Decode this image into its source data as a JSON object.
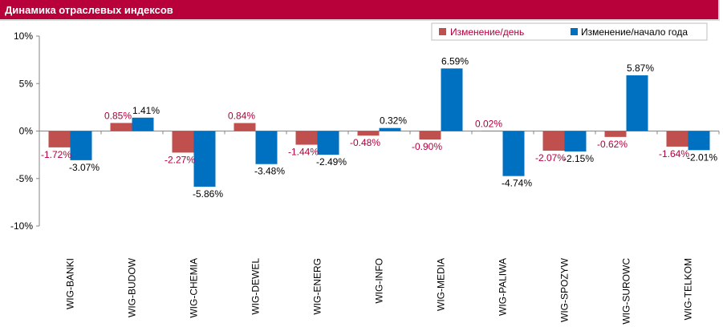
{
  "header": {
    "title": "Динамика отраслевых индексов"
  },
  "chart_data": {
    "type": "bar",
    "categories": [
      "WIG-BANKI",
      "WIG-BUDOW",
      "WIG-CHEMIA",
      "WIG-DEWEL",
      "WIG-ENERG",
      "WIG-INFO",
      "WIG-MEDIA",
      "WIG-PALIWA",
      "WIG-SPOZYW",
      "WIG-SUROWC",
      "WIG-TELKOM"
    ],
    "series": [
      {
        "name": "Изменение/день",
        "color": "#c0504d",
        "label_color": "#b3003a",
        "values": [
          -1.72,
          0.85,
          -2.27,
          0.84,
          -1.44,
          -0.48,
          -0.9,
          0.02,
          -2.07,
          -0.62,
          -1.64
        ],
        "labels": [
          "-1.72%",
          "0.85%",
          "-2.27%",
          "0.84%",
          "-1.44%",
          "-0.48%",
          "-0.90%",
          "0.02%",
          "-2.07%",
          "-0.62%",
          "-1.64%"
        ]
      },
      {
        "name": "Изменение/начало года",
        "color": "#0070c0",
        "label_color": "#000000",
        "values": [
          -3.07,
          1.41,
          -5.86,
          -3.48,
          -2.49,
          0.32,
          6.59,
          -4.74,
          -2.15,
          5.87,
          -2.01
        ],
        "labels": [
          "-3.07%",
          "1.41%",
          "-5.86%",
          "-3.48%",
          "-2.49%",
          "0.32%",
          "6.59%",
          "-4.74%",
          "-2.15%",
          "5.87%",
          "-2.01%"
        ]
      }
    ],
    "yticks": [
      "10%",
      "5%",
      "0%",
      "-5%",
      "-10%"
    ],
    "ytick_values": [
      10,
      5,
      0,
      -5,
      -10
    ],
    "ylim": [
      -10,
      10
    ],
    "grid": false,
    "legend_position": "top-right"
  }
}
